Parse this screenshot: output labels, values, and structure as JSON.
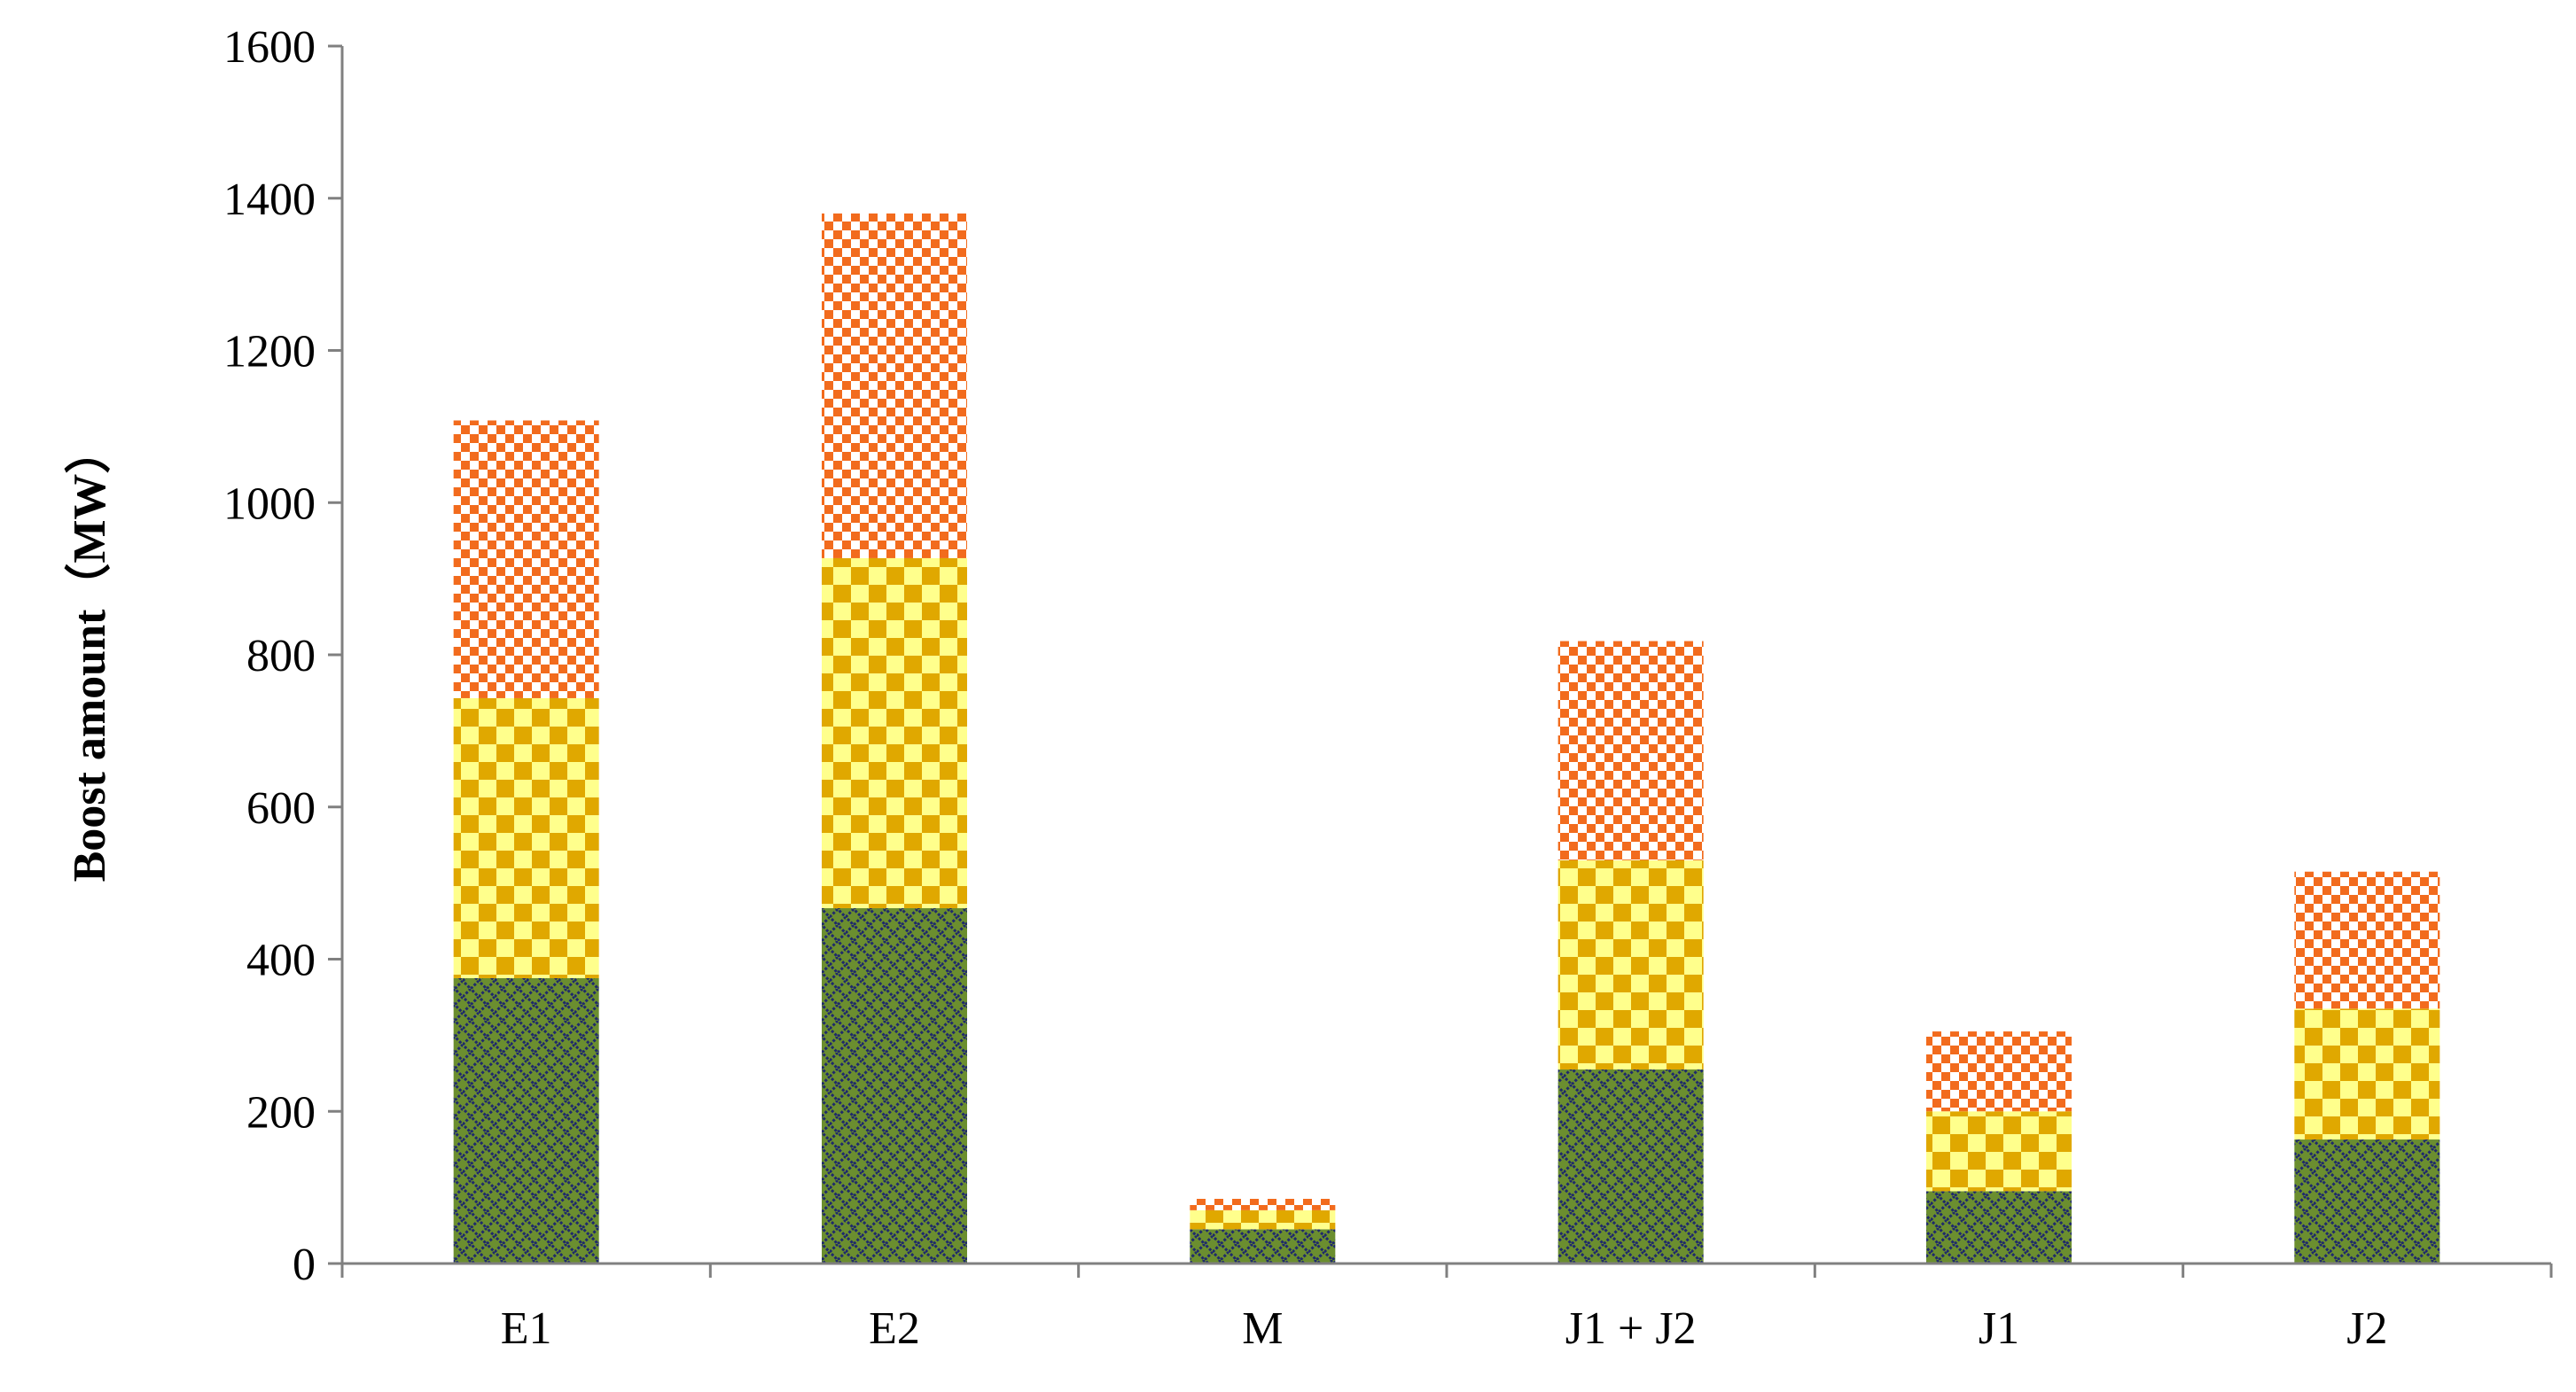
{
  "chart_data": {
    "type": "bar",
    "stacked": true,
    "title": "",
    "xlabel": "",
    "ylabel": "Boost amount（MW）",
    "ylim": [
      0,
      1600
    ],
    "yticks": [
      "0",
      "200",
      "400",
      "600",
      "800",
      "1000",
      "1200",
      "1400",
      "1600"
    ],
    "grid": false,
    "legend": "none",
    "categories": [
      "E1",
      "E2",
      "M",
      "J1 + J2",
      "J1",
      "J2"
    ],
    "series": [
      {
        "values": [
          375,
          467,
          45,
          255,
          95,
          163
        ],
        "colors": [
          "#6b8e2f",
          "#1f2a6b"
        ],
        "pattern": "diamond-lattice"
      },
      {
        "values": [
          368,
          460,
          25,
          275,
          105,
          172
        ],
        "colors": [
          "#ffff8c",
          "#e0a800"
        ],
        "pattern": "checker"
      },
      {
        "values": [
          365,
          453,
          15,
          288,
          105,
          180
        ],
        "colors": [
          "#ffffff",
          "#f26b1d"
        ],
        "pattern": "fine-checker"
      }
    ]
  }
}
